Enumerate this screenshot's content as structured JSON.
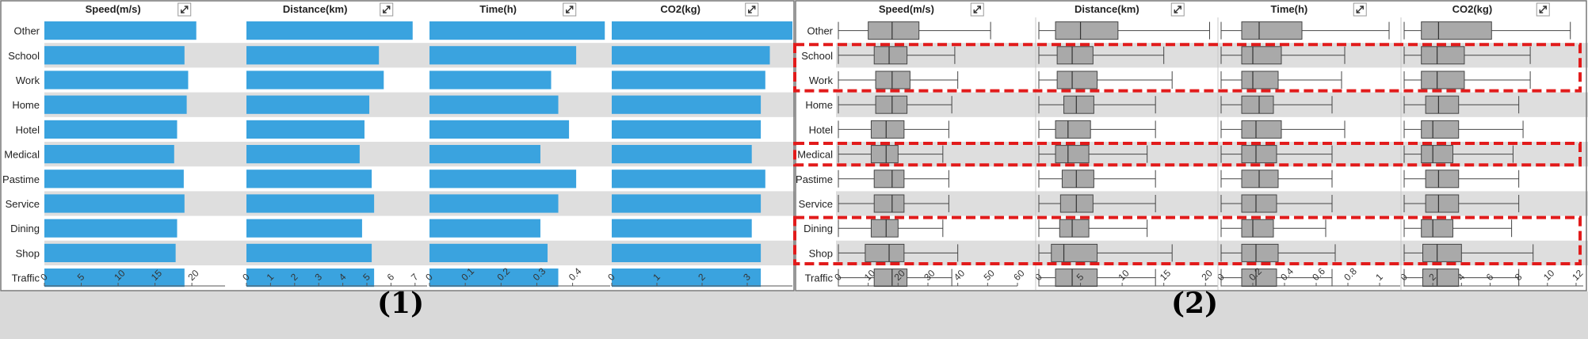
{
  "captions": [
    "(1)",
    "(2)"
  ],
  "chart_data": [
    {
      "type": "bar",
      "categories": [
        "Other",
        "School",
        "Work",
        "Home",
        "Hotel",
        "Medical",
        "Pastime",
        "Service",
        "Dining",
        "Shop",
        "Traffic"
      ],
      "series": [
        {
          "name": "Speed(m/s)",
          "values": [
            20.6,
            19.0,
            19.5,
            19.3,
            18.0,
            17.6,
            18.9,
            19.0,
            18.0,
            17.8,
            19.0
          ],
          "ticks": [
            0,
            5,
            10,
            15,
            20
          ],
          "xlim": [
            0,
            24.5
          ]
        },
        {
          "name": "Distance(km)",
          "values": [
            6.9,
            5.5,
            5.7,
            5.1,
            4.9,
            4.7,
            5.2,
            5.3,
            4.8,
            5.2,
            5.3
          ],
          "ticks": [
            0,
            1,
            2,
            3,
            4,
            5,
            6,
            7
          ],
          "xlim": [
            0,
            7.5
          ]
        },
        {
          "name": "Time(h)",
          "values": [
            0.49,
            0.41,
            0.34,
            0.36,
            0.39,
            0.31,
            0.41,
            0.36,
            0.31,
            0.33,
            0.36
          ],
          "ticks": [
            0,
            0.1,
            0.2,
            0.3,
            0.4
          ],
          "tick_labels": [
            "0",
            "0.1",
            "0.2",
            "0.3",
            "0.4"
          ],
          "xlim": [
            0,
            0.505
          ]
        },
        {
          "name": "CO2(kg)",
          "values": [
            4.0,
            3.5,
            3.4,
            3.3,
            3.3,
            3.1,
            3.4,
            3.3,
            3.1,
            3.3,
            3.3
          ],
          "ticks": [
            0,
            1,
            2,
            3
          ],
          "xlim": [
            0,
            4.0
          ]
        }
      ]
    },
    {
      "type": "box",
      "categories": [
        "Other",
        "School",
        "Work",
        "Home",
        "Hotel",
        "Medical",
        "Pastime",
        "Service",
        "Dining",
        "Shop",
        "Traffic"
      ],
      "series": [
        {
          "name": "Speed(m/s)",
          "ticks": [
            0,
            10,
            20,
            30,
            40,
            50,
            60
          ],
          "tick_labels": [
            "0",
            "10",
            "20",
            "30",
            "40",
            "50",
            "60"
          ],
          "xlim": [
            0,
            60
          ],
          "boxes": [
            [
              0,
              10,
              18,
              27,
              51
            ],
            [
              0,
              12,
              17,
              23,
              39
            ],
            [
              0,
              12.5,
              18,
              24,
              40
            ],
            [
              0,
              12.5,
              18,
              23,
              38
            ],
            [
              0,
              11,
              16,
              22,
              37
            ],
            [
              0,
              11,
              16,
              20,
              35
            ],
            [
              0,
              12,
              18,
              22,
              37
            ],
            [
              0,
              12,
              18,
              22,
              37
            ],
            [
              0,
              11,
              16,
              20,
              35
            ],
            [
              0,
              9,
              17,
              22,
              40
            ],
            [
              0,
              12,
              18,
              23,
              38
            ]
          ]
        },
        {
          "name": "Distance(km)",
          "ticks": [
            0,
            5,
            10,
            15,
            20
          ],
          "tick_labels": [
            "0",
            "5",
            "10",
            "15",
            "20"
          ],
          "xlim": [
            0,
            21.5
          ],
          "boxes": [
            [
              0,
              2,
              5,
              9.5,
              20.5
            ],
            [
              0,
              2.2,
              4,
              6.5,
              15
            ],
            [
              0,
              2.2,
              4,
              7,
              16
            ],
            [
              0,
              3,
              4.5,
              6.6,
              14
            ],
            [
              0,
              2,
              3.5,
              6.2,
              14
            ],
            [
              0,
              2,
              3.5,
              6,
              13
            ],
            [
              0,
              2.8,
              4.5,
              6.6,
              14
            ],
            [
              0,
              2.6,
              4.5,
              6.5,
              14
            ],
            [
              0,
              2.5,
              4,
              6,
              13
            ],
            [
              0,
              1.5,
              3,
              7,
              16
            ],
            [
              0,
              2,
              4,
              7,
              14
            ]
          ]
        },
        {
          "name": "Time(h)",
          "ticks": [
            0,
            0.2,
            0.4,
            0.6,
            0.8,
            1.0
          ],
          "tick_labels": [
            "0",
            "0.2",
            "0.4",
            "0.6",
            "0.8",
            "1"
          ],
          "xlim": [
            0,
            1.13
          ],
          "boxes": [
            [
              0,
              0.13,
              0.24,
              0.51,
              1.06
            ],
            [
              0,
              0.13,
              0.2,
              0.38,
              0.78
            ],
            [
              0,
              0.13,
              0.2,
              0.36,
              0.76
            ],
            [
              0,
              0.13,
              0.24,
              0.33,
              0.7
            ],
            [
              0,
              0.13,
              0.22,
              0.38,
              0.78
            ],
            [
              0,
              0.13,
              0.22,
              0.35,
              0.7
            ],
            [
              0,
              0.13,
              0.24,
              0.36,
              0.7
            ],
            [
              0,
              0.13,
              0.22,
              0.35,
              0.7
            ],
            [
              0,
              0.13,
              0.2,
              0.33,
              0.66
            ],
            [
              0,
              0.13,
              0.22,
              0.36,
              0.72
            ],
            [
              0,
              0.13,
              0.22,
              0.35,
              0.7
            ]
          ]
        },
        {
          "name": "CO2(kg)",
          "ticks": [
            0,
            2,
            4,
            6,
            8,
            10,
            12
          ],
          "tick_labels": [
            "0",
            "2",
            "4",
            "6",
            "8",
            "10",
            "12"
          ],
          "xlim": [
            0,
            12.5
          ],
          "boxes": [
            [
              0,
              1.2,
              2.4,
              6.1,
              11.6
            ],
            [
              0,
              1.2,
              2.3,
              4.2,
              8.8
            ],
            [
              0,
              1.2,
              2.3,
              4.2,
              8.8
            ],
            [
              0,
              1.5,
              2.4,
              3.8,
              8
            ],
            [
              0,
              1.2,
              2,
              3.8,
              8.3
            ],
            [
              0,
              1.2,
              2,
              3.4,
              7.6
            ],
            [
              0,
              1.5,
              2.4,
              3.8,
              8
            ],
            [
              0,
              1.5,
              2.4,
              3.8,
              8
            ],
            [
              0,
              1.2,
              2,
              3.4,
              7.5
            ],
            [
              0,
              1.3,
              2.3,
              4,
              9
            ],
            [
              0,
              1.3,
              2.3,
              3.8,
              8
            ]
          ]
        }
      ]
    }
  ]
}
